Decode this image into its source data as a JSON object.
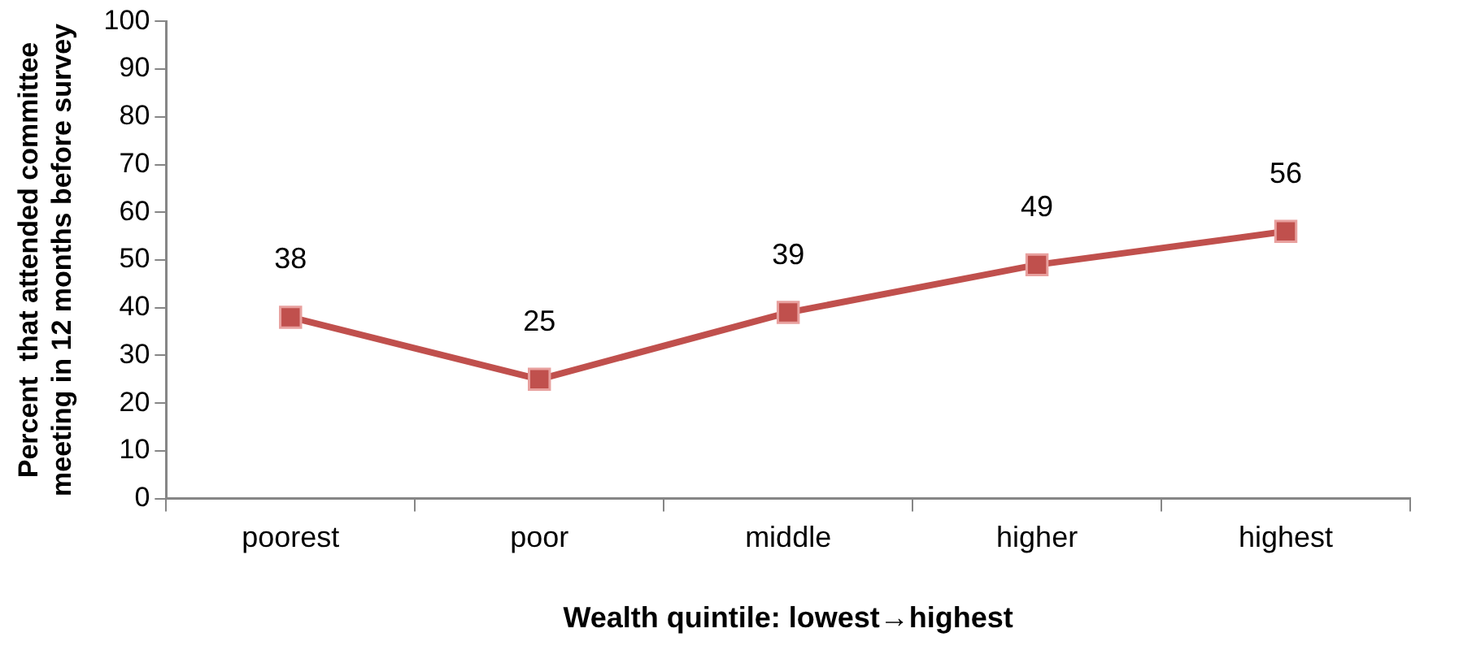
{
  "chart_data": {
    "type": "line",
    "xlabel": "Wealth quintile: lowest→highest",
    "ylabel": "Percent  that attended committee\nmeeting in 12 months before survey",
    "categories": [
      "poorest",
      "poor",
      "middle",
      "higher",
      "highest"
    ],
    "series": [
      {
        "color": "#c0504d",
        "values": [
          38,
          25,
          39,
          49,
          56
        ]
      }
    ],
    "ylim": [
      0,
      100
    ],
    "yticks": [
      0,
      10,
      20,
      30,
      40,
      50,
      60,
      70,
      80,
      90,
      100
    ],
    "grid": false,
    "legend": false,
    "marker": "square",
    "line_style": "solid",
    "data_labels": true
  }
}
